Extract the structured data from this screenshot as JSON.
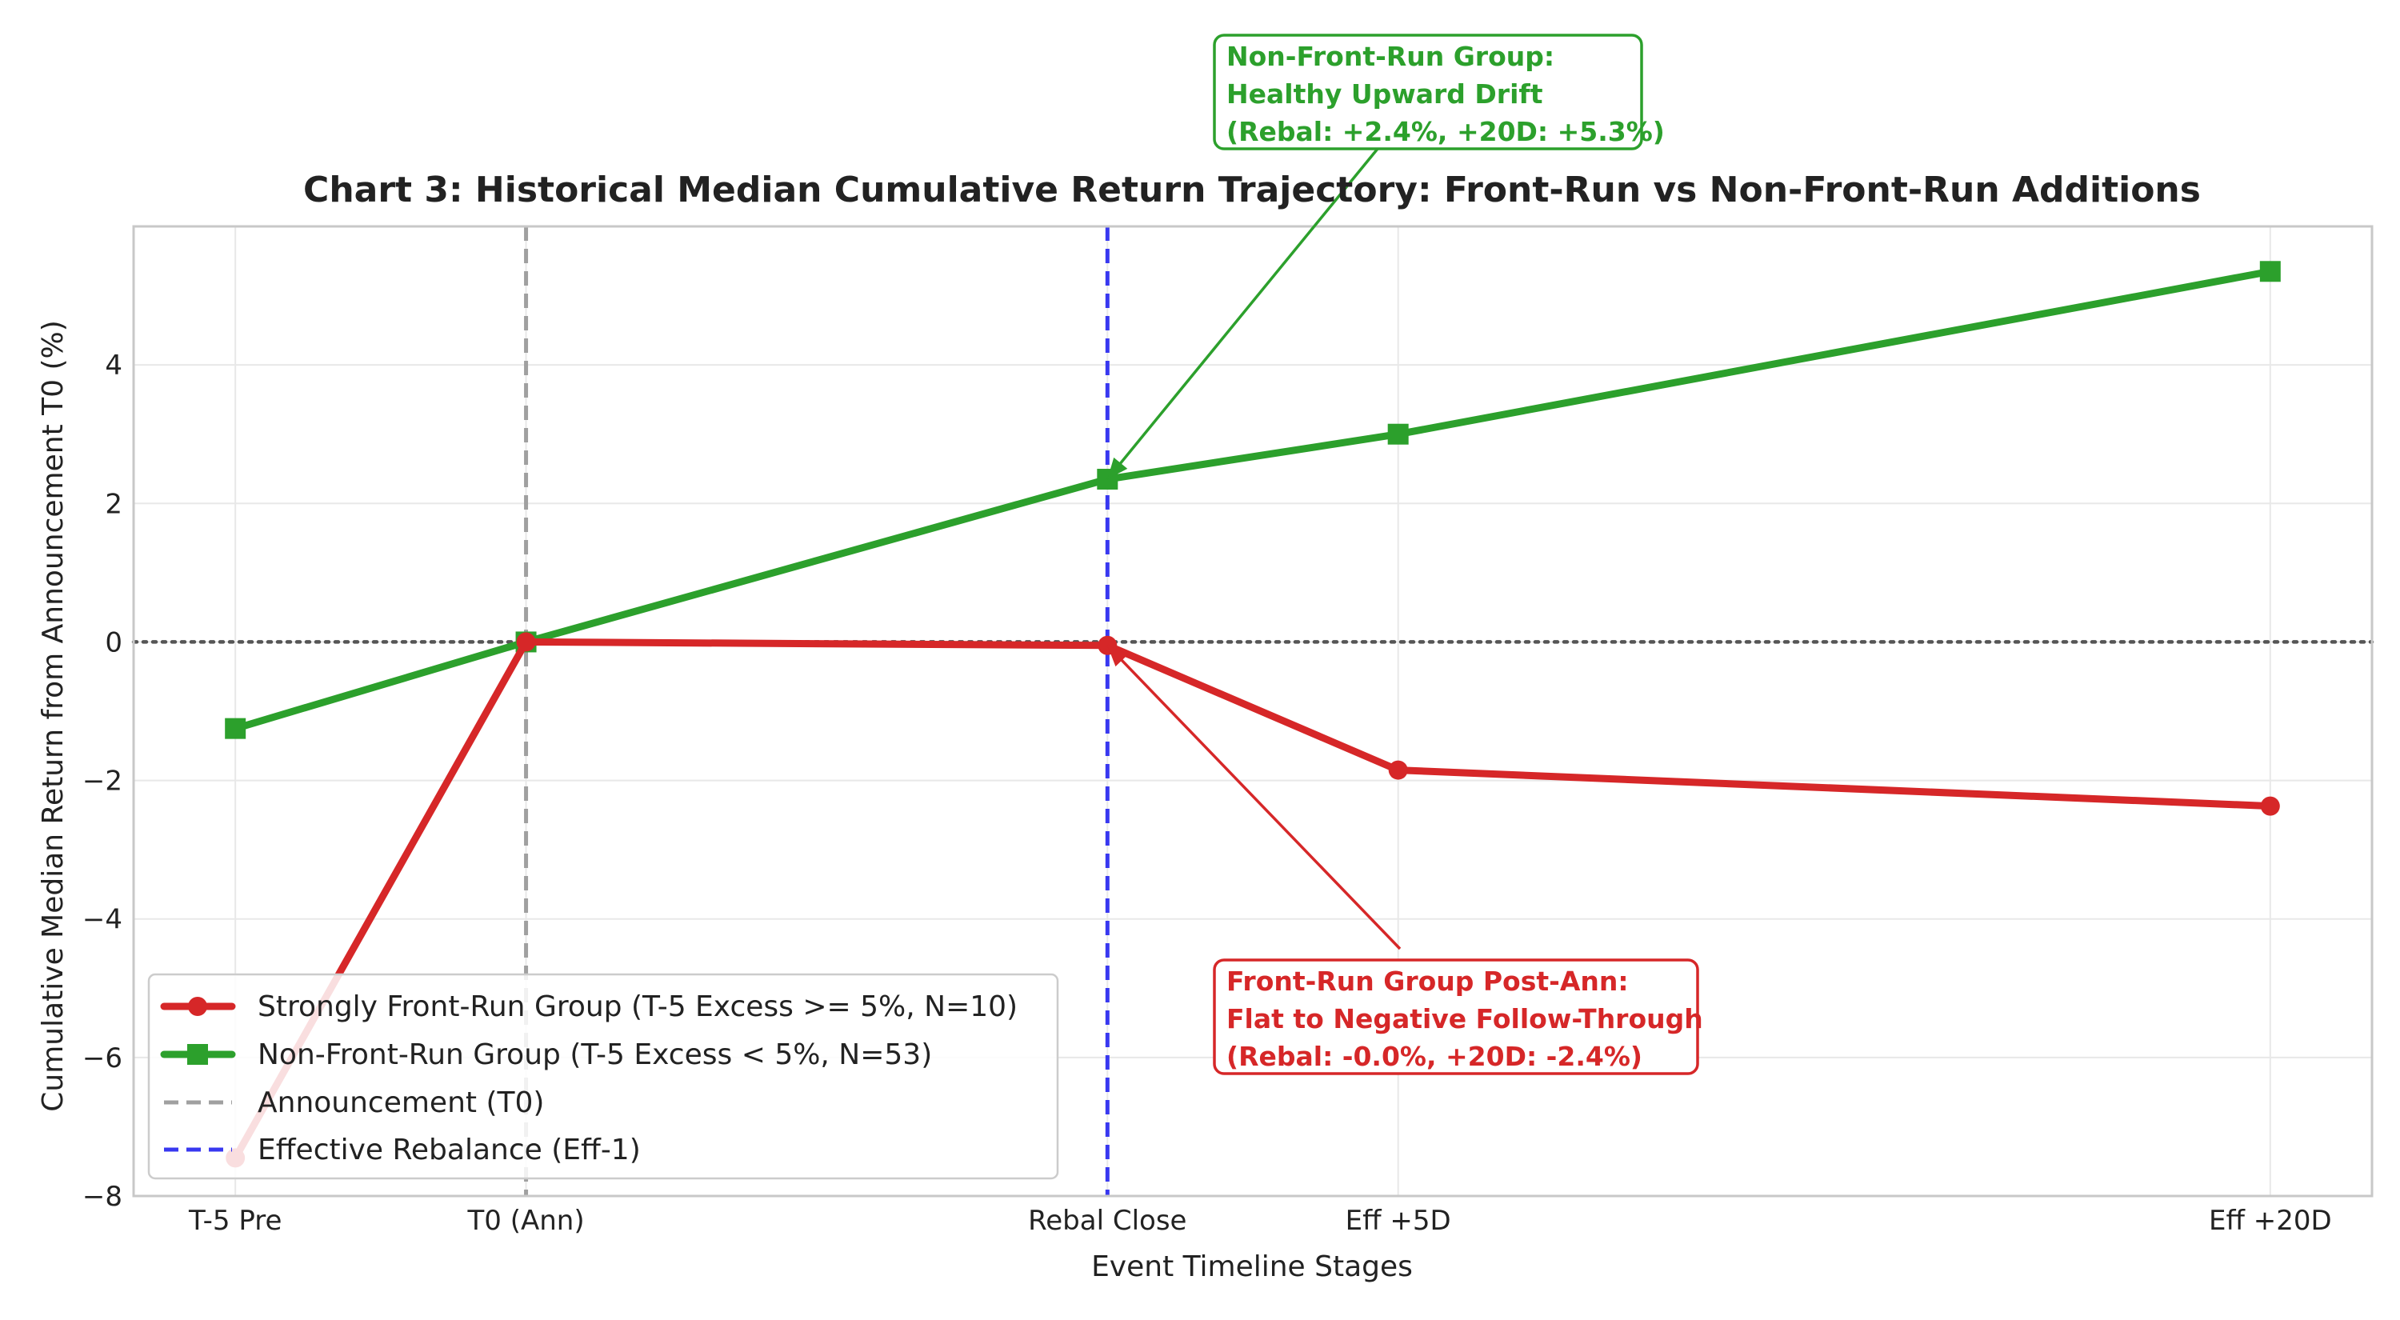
{
  "chart_data": {
    "type": "line",
    "title": "Chart 3: Historical Median Cumulative Return Trajectory: Front-Run vs Non-Front-Run Additions",
    "xlabel": "Event Timeline Stages",
    "ylabel": "Cumulative Median Return from Announcement T0 (%)",
    "x": [
      -5,
      0,
      10,
      15,
      30
    ],
    "x_tick_labels": [
      "T-5 Pre",
      "T0 (Ann)",
      "Rebal Close",
      "Eff +5D",
      "Eff +20D"
    ],
    "xlim": [
      -6.75,
      31.75
    ],
    "ylim": [
      -8,
      6
    ],
    "y_ticks": [
      -8,
      -6,
      -4,
      -2,
      0,
      2,
      4
    ],
    "y_tick_labels": [
      "−8",
      "−6",
      "−4",
      "−2",
      "0",
      "2",
      "4"
    ],
    "grid": true,
    "legend_position": "lower-left",
    "series": [
      {
        "name": "Strongly Front-Run Group (T-5 Excess >= 5%, N=10)",
        "color": "#d62728",
        "marker": "circle",
        "values": [
          -7.45,
          0.0,
          -0.05,
          -1.85,
          -2.37
        ]
      },
      {
        "name": "Non-Front-Run Group (T-5 Excess < 5%, N=53)",
        "color": "#2ca02c",
        "marker": "square",
        "values": [
          -1.25,
          0.0,
          2.35,
          3.0,
          5.35
        ]
      }
    ],
    "reference_lines": [
      {
        "name": "Announcement (T0)",
        "orientation": "vertical",
        "x": 0,
        "color": "#a0a0a0",
        "style": "dashed"
      },
      {
        "name": "Effective Rebalance (Eff-1)",
        "orientation": "vertical",
        "x": 10,
        "color": "#3838f0",
        "style": "dashed"
      },
      {
        "orientation": "horizontal",
        "y": 0,
        "color": "#555555",
        "style": "dotted"
      }
    ],
    "annotations": [
      {
        "id": "green",
        "lines": [
          "Non-Front-Run Group:",
          "Healthy Upward Drift",
          "(Rebal: +2.4%, +20D: +5.3%)"
        ],
        "color": "#2ca02c",
        "target": {
          "x": 10,
          "y": 2.35
        }
      },
      {
        "id": "red",
        "lines": [
          "Front-Run Group Post-Ann:",
          "Flat to Negative Follow-Through",
          "(Rebal: -0.0%, +20D: -2.4%)"
        ],
        "color": "#d62728",
        "target": {
          "x": 10,
          "y": -0.05
        }
      }
    ]
  }
}
